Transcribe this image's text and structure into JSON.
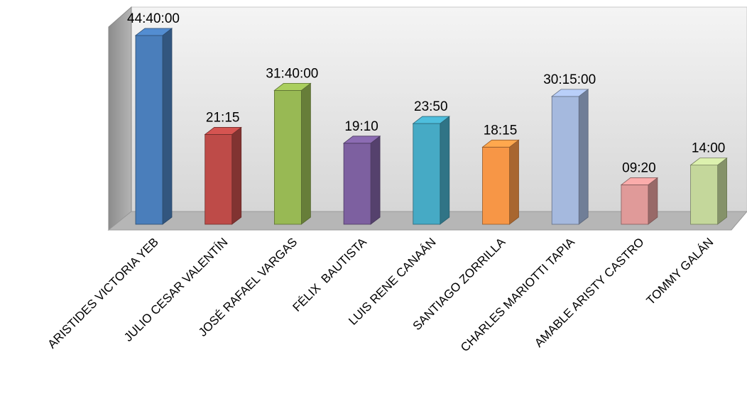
{
  "chart_data": {
    "type": "bar",
    "style": "3d-column",
    "title": "",
    "xlabel": "",
    "ylabel": "",
    "legend": "none",
    "grid": false,
    "categories": [
      "ARISTIDES VICTORIA YEB",
      "JULIO CESAR VALENTÍN",
      "JOSÉ RAFAEL VARGAS",
      "FÉLIX  BAUTISTA",
      "LUIS RENE CANAÁN",
      "SANTIAGO ZORRILLA",
      "CHARLES MARIOTTI TAPIA",
      "AMABLE ARISTY CASTRO",
      "TOMMY GALÁN"
    ],
    "values": [
      44.67,
      21.25,
      31.67,
      19.17,
      23.83,
      18.25,
      30.25,
      9.33,
      14.0
    ],
    "value_unit": "hours",
    "data_labels": [
      "44:40:00",
      "21:15",
      "31:40:00",
      "19:10",
      "23:50",
      "18:15",
      "30:15:00",
      "09:20",
      "14:00"
    ],
    "colors": [
      "#4a7ebb",
      "#be4b48",
      "#98b954",
      "#7d60a0",
      "#46aac5",
      "#f79646",
      "#a5b9de",
      "#e09a99",
      "#c4d79b"
    ],
    "ylim": [
      0,
      45
    ]
  }
}
